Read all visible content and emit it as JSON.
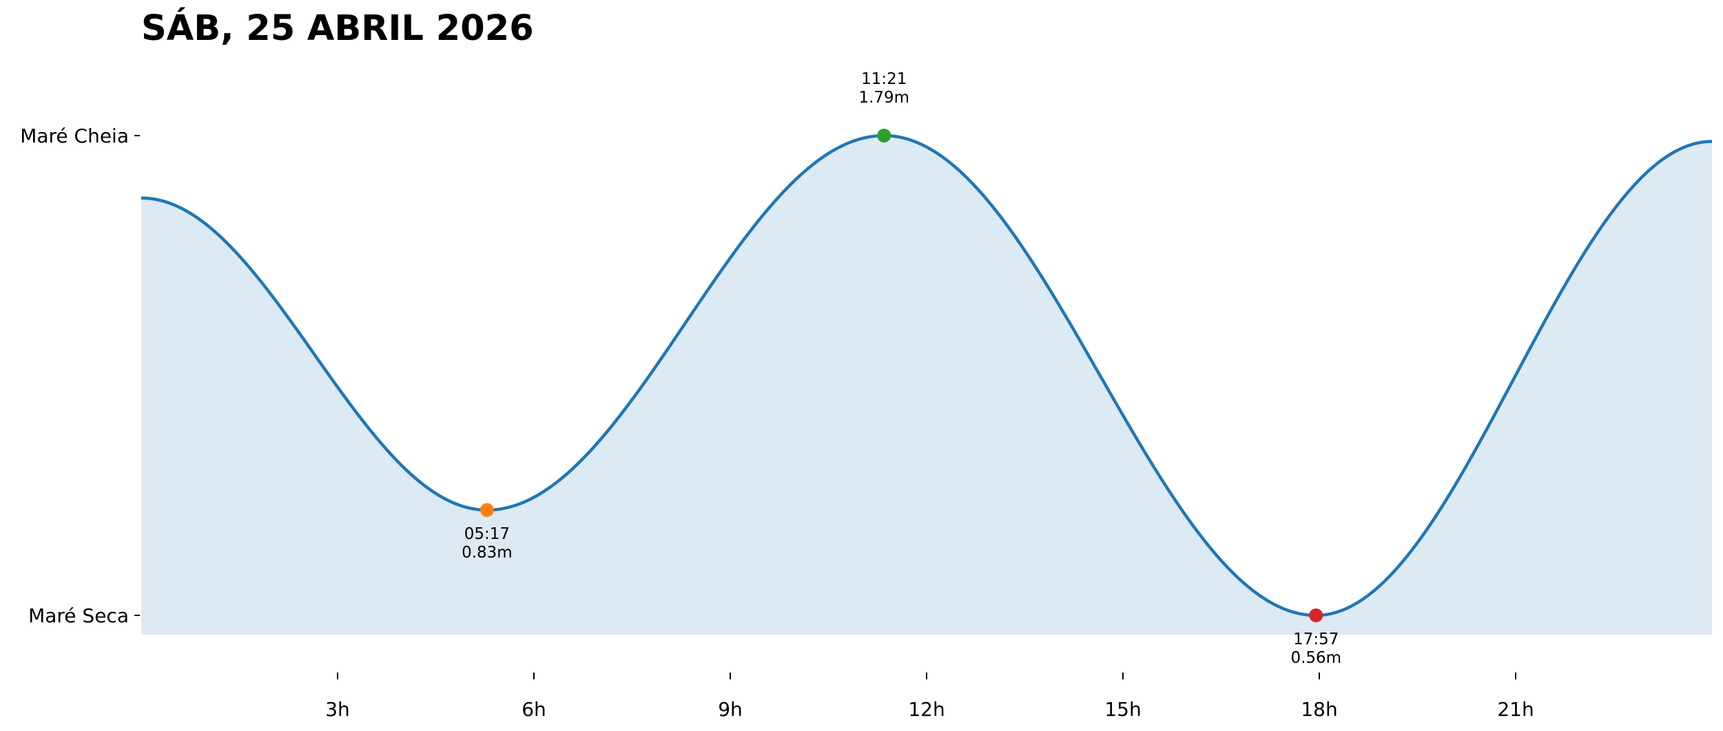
{
  "chart_data": {
    "type": "area",
    "title": "SÁB, 25 ABRIL 2026",
    "xlabel": "",
    "ylabel": "",
    "xlim": [
      0,
      24
    ],
    "x_ticks": [
      {
        "value": 3,
        "label": "3h"
      },
      {
        "value": 6,
        "label": "6h"
      },
      {
        "value": 9,
        "label": "9h"
      },
      {
        "value": 12,
        "label": "12h"
      },
      {
        "value": 15,
        "label": "15h"
      },
      {
        "value": 18,
        "label": "18h"
      },
      {
        "value": 21,
        "label": "21h"
      }
    ],
    "y_ticks": [
      {
        "value": 1.79,
        "label": "Maré Cheia"
      },
      {
        "value": 0.56,
        "label": "Maré Seca"
      }
    ],
    "grid": false,
    "series": [
      {
        "x": [
          0,
          5.283,
          11.35,
          17.95,
          24
        ],
        "y": [
          1.63,
          0.83,
          1.79,
          0.56,
          1.775
        ],
        "color": "#1f77b4",
        "fill": "#dde9f3"
      }
    ],
    "extremes": [
      {
        "time": "05:17",
        "hour": 5.283,
        "height": 0.83,
        "height_label": "0.83m",
        "kind": "low",
        "color": "#ff7f0e"
      },
      {
        "time": "11:21",
        "hour": 11.35,
        "height": 1.79,
        "height_label": "1.79m",
        "kind": "high",
        "color": "#2ca02c"
      },
      {
        "time": "17:57",
        "hour": 17.95,
        "height": 0.56,
        "height_label": "0.56m",
        "kind": "low",
        "color": "#d62728"
      }
    ]
  }
}
